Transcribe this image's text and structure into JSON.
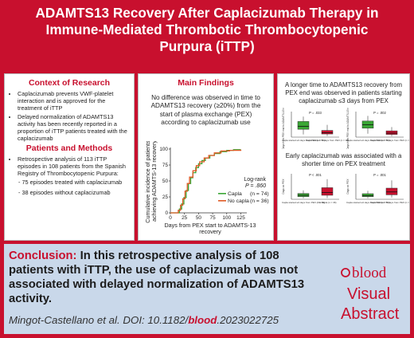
{
  "header": {
    "title_lines": [
      "ADAMTS13 Recovery After Caplacizumab Therapy in",
      "Immune-Mediated Thrombotic Thrombocytopenic",
      "Purpura (iTTP)"
    ]
  },
  "context": {
    "heading": "Context of Research",
    "bullets": [
      "Caplacizumab prevents VWF-platelet interaction and is approved for the treatment of iTTP",
      "Delayed normalization of ADAMTS13 activity has been recently reported in a proportion of iTTP patients treated with the caplacizumab"
    ]
  },
  "methods": {
    "heading": "Patients and Methods",
    "bullet": "Retrospective analysis of 113 iTTP episodes in 108 patients from the Spanish Registry of Thrombocytopenic Purpura:",
    "sub_items": [
      "- 75 episodes treated with caplacizumab",
      "- 38 episodes without caplacizumab"
    ]
  },
  "findings": {
    "heading": "Main Findings",
    "text": "No difference was observed in time to ADAMTS13 recovery (≥20%) from the start of plasma exchange (PEX) according to caplacizumab use"
  },
  "km_chart": {
    "ylabel_lines": [
      "Cumulative incidence of patients",
      "achieving ADAMTS-13 recovery"
    ],
    "xlabel_lines": [
      "Days from PEX start to ADAMTS-13",
      "recovery"
    ],
    "logrank_lines": [
      "Log-rank",
      "P = .860"
    ],
    "legend": [
      {
        "label": "Capla",
        "n": "(n = 74)",
        "color": "#3aa635"
      },
      {
        "label": "No capla",
        "n": "(n = 36)",
        "color": "#e05a26"
      }
    ]
  },
  "chart_data": {
    "type": "line",
    "x_ticks": [
      0,
      25,
      50,
      75,
      100,
      125
    ],
    "y_ticks": [
      0,
      25,
      50,
      75,
      100
    ],
    "xlim": [
      0,
      130
    ],
    "ylim": [
      0,
      100
    ],
    "series": [
      {
        "name": "Capla",
        "color": "#3aa635",
        "x": [
          0,
          12,
          16,
          20,
          24,
          28,
          32,
          36,
          40,
          45,
          50,
          56,
          62,
          70,
          78,
          88,
          100,
          112,
          125
        ],
        "y": [
          0,
          0,
          6,
          14,
          24,
          35,
          46,
          55,
          63,
          71,
          77,
          82,
          86,
          90,
          93,
          96,
          98,
          99,
          99
        ]
      },
      {
        "name": "No capla",
        "color": "#e05a26",
        "x": [
          0,
          10,
          14,
          18,
          22,
          26,
          30,
          34,
          40,
          46,
          52,
          60,
          68,
          78,
          90,
          105,
          125
        ],
        "y": [
          0,
          0,
          4,
          12,
          22,
          34,
          46,
          56,
          66,
          74,
          80,
          86,
          90,
          94,
          97,
          98,
          99
        ]
      }
    ]
  },
  "right_panel": {
    "top_text": "A longer time to ADAMTS13 recovery from PEX end was observed in patients starting caplacizumab ≤3 days from PEX",
    "bottom_text": "Early caplacizumab was associated with a shorter time on PEX treatment",
    "boxplots": [
      {
        "p": "P = .033",
        "ylabel": "Days from PEX end to ADAMTS-13 recovery",
        "groups": [
          "Capla started ≤3 days from PEX (n = 56)",
          "Capla started >3 days from PEX (n = 18)"
        ]
      },
      {
        "p": "P = .002",
        "ylabel": "Days from PEX end to ADAMTS-13 recovery",
        "groups": [
          "Capla started ≤3 days from PEX (n = 56)",
          "Capla started >3 days from PEX (n = 18)"
        ]
      },
      {
        "p": "P < .001",
        "ylabel": "Days on PEX",
        "groups": [
          "Capla started ≤3 days from PEX (n = 56)",
          "No capla (n = 36)"
        ]
      },
      {
        "p": "P = .001",
        "ylabel": "Days on PEX",
        "groups": [
          "Capla started ≤3 days from PEX (n = 56)",
          "Capla started >3 days from PEX (n = 18)"
        ]
      }
    ]
  },
  "conclusion": {
    "label": "Conclusion:",
    "text": "In this retrospective analysis of 108 patients with iTTP, the use of caplacizumab was not associated with delayed normalization of ADAMTS13 activity."
  },
  "citation": {
    "prefix": "Mingot-Castellano et al. DOI: 10.1182/",
    "journal": "blood",
    "suffix": ".2023022725"
  },
  "logo": {
    "word": "blood",
    "line1": "Visual",
    "line2": "Abstract"
  }
}
